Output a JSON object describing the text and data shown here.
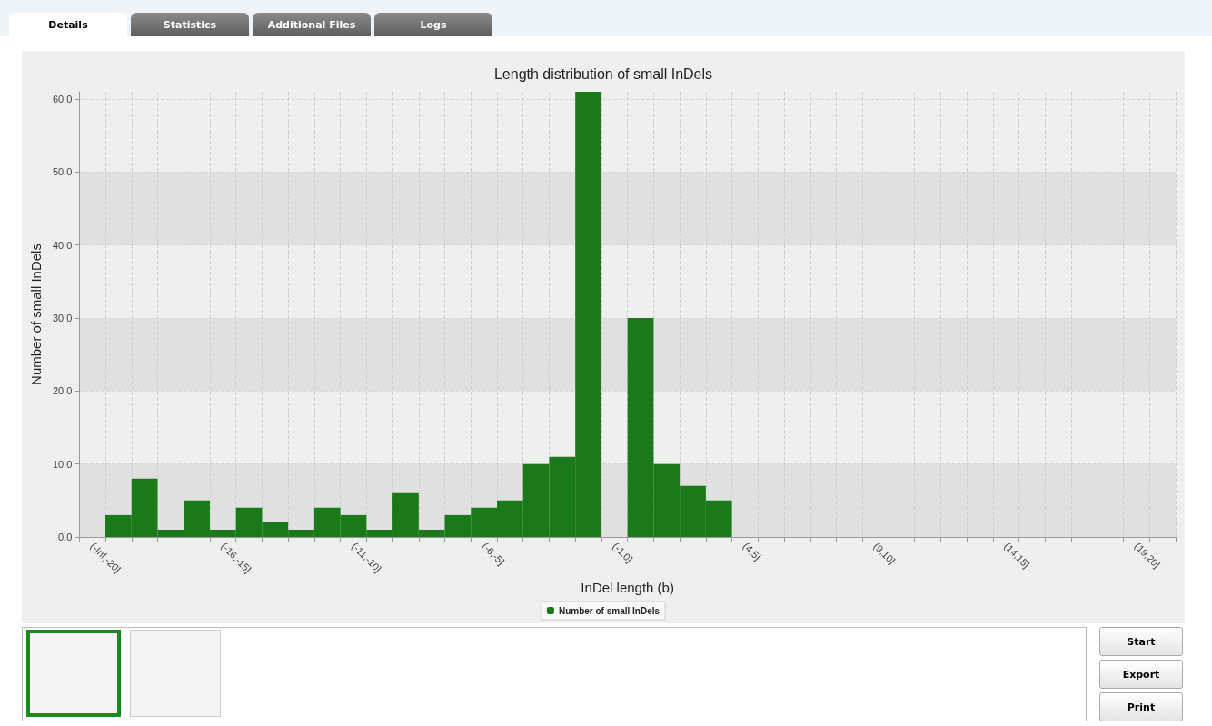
{
  "chart_data": {
    "type": "bar",
    "title": "Length distribution of small InDels",
    "xlabel": "InDel length (b)",
    "ylabel": "Number of small InDels",
    "categories": [
      "(-Inf,-20]",
      null,
      null,
      null,
      null,
      "(-16,-15]",
      null,
      null,
      null,
      null,
      "(-11,-10]",
      null,
      null,
      null,
      null,
      "(-6,-5]",
      null,
      null,
      null,
      null,
      "(-1,0]",
      null,
      null,
      null,
      null,
      "(4,5]",
      null,
      null,
      null,
      null,
      "(9,10]",
      null,
      null,
      null,
      null,
      "(14,15]",
      null,
      null,
      null,
      null,
      "(19,20]",
      null
    ],
    "series": [
      {
        "name": "Number of small InDels",
        "color": "#1a7a1a",
        "values": [
          0,
          3,
          8,
          1,
          5,
          1,
          4,
          2,
          1,
          4,
          3,
          1,
          6,
          1,
          3,
          4,
          5,
          10,
          11,
          61,
          0,
          30,
          10,
          7,
          5,
          0,
          0,
          0,
          0,
          0,
          0,
          0,
          0,
          0,
          0,
          0,
          0,
          0,
          0,
          0,
          0,
          0
        ]
      }
    ],
    "ylim": [
      0,
      61
    ],
    "yticks": [
      {
        "value": 0,
        "label": "0.0"
      },
      {
        "value": 10,
        "label": "10.0"
      },
      {
        "value": 20,
        "label": "20.0"
      },
      {
        "value": 30,
        "label": "30.0"
      },
      {
        "value": 40,
        "label": "40.0"
      },
      {
        "value": 50,
        "label": "50.0"
      },
      {
        "value": 60,
        "label": "60.0"
      }
    ],
    "grid": true,
    "legend": "bottom",
    "annotations": [
      "Details",
      "Statistics",
      "Additional Files",
      "Logs",
      "Start",
      "Export",
      "Print"
    ]
  }
}
